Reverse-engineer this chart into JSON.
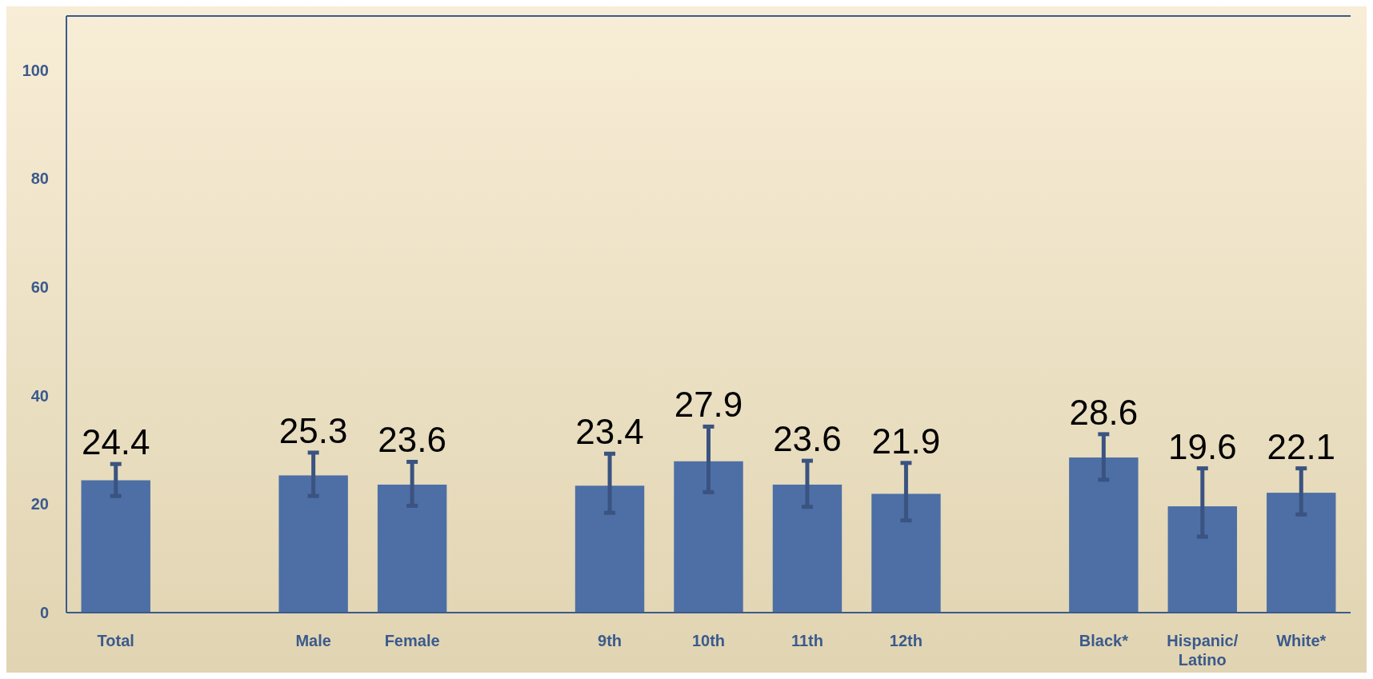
{
  "chart_data": {
    "type": "bar",
    "categories": [
      "Total",
      null,
      "Male",
      "Female",
      null,
      "9th",
      "10th",
      "11th",
      "12th",
      null,
      "Black*",
      "Hispanic/\nLatino",
      "White*"
    ],
    "values": [
      24.4,
      null,
      25.3,
      23.6,
      null,
      23.4,
      27.9,
      23.6,
      21.9,
      null,
      28.6,
      19.6,
      22.1
    ],
    "errors": [
      [
        21.5,
        27.4
      ],
      null,
      [
        21.5,
        29.5
      ],
      [
        19.7,
        27.8
      ],
      null,
      [
        18.4,
        29.3
      ],
      [
        22.2,
        34.3
      ],
      [
        19.5,
        28.0
      ],
      [
        17.0,
        27.6
      ],
      null,
      [
        24.5,
        32.9
      ],
      [
        14.0,
        26.6
      ],
      [
        18.1,
        26.6
      ]
    ],
    "color": "#4d6fa5",
    "ylim": [
      0,
      110
    ],
    "yticks": [
      0,
      20,
      40,
      60,
      80,
      100
    ],
    "data_labels": true,
    "grid": false
  }
}
